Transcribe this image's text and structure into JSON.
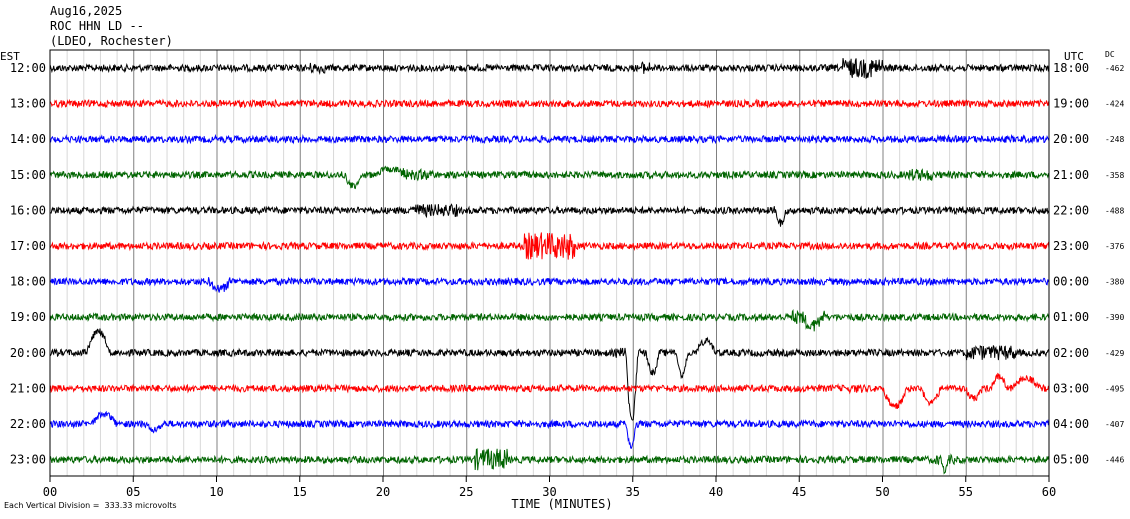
{
  "header": {
    "date": "Aug16,2025",
    "station": "ROC HHN LD --",
    "network": "(LDEO, Rochester)"
  },
  "left_axis_title": "EST",
  "right_axis_title": "UTC",
  "dc_title": "DC",
  "footnote": "Each Vertical Division =  333.33 microvolts",
  "colors": [
    "#000000",
    "#ff0000",
    "#0000ff",
    "#006400"
  ],
  "chart_data": {
    "type": "line",
    "subtype": "helicorder",
    "xlabel": "TIME (MINUTES)",
    "xlim": [
      0,
      60
    ],
    "x_ticks": [
      0,
      5,
      10,
      15,
      20,
      25,
      30,
      35,
      40,
      45,
      50,
      55,
      60
    ],
    "x_tick_labels": [
      "00",
      "05",
      "10",
      "15",
      "20",
      "25",
      "30",
      "35",
      "40",
      "45",
      "50",
      "55",
      "60"
    ],
    "grid": "vertical lines every minute",
    "vertical_division_microvolts": 333.33,
    "rows": [
      {
        "est": "12:00",
        "utc": "18:00",
        "dc": "-462",
        "color": "#000000"
      },
      {
        "est": "13:00",
        "utc": "19:00",
        "dc": "-424",
        "color": "#ff0000"
      },
      {
        "est": "14:00",
        "utc": "20:00",
        "dc": "-248",
        "color": "#0000ff"
      },
      {
        "est": "15:00",
        "utc": "21:00",
        "dc": "-358",
        "color": "#006400"
      },
      {
        "est": "16:00",
        "utc": "22:00",
        "dc": "-488",
        "color": "#000000"
      },
      {
        "est": "17:00",
        "utc": "23:00",
        "dc": "-376",
        "color": "#ff0000"
      },
      {
        "est": "18:00",
        "utc": "00:00",
        "dc": "-380",
        "color": "#0000ff"
      },
      {
        "est": "19:00",
        "utc": "01:00",
        "dc": "-390",
        "color": "#006400"
      },
      {
        "est": "20:00",
        "utc": "02:00",
        "dc": "-429",
        "color": "#000000"
      },
      {
        "est": "21:00",
        "utc": "03:00",
        "dc": "-495",
        "color": "#ff0000"
      },
      {
        "est": "22:00",
        "utc": "04:00",
        "dc": "-407",
        "color": "#0000ff"
      },
      {
        "est": "23:00",
        "utc": "05:00",
        "dc": "-446",
        "color": "#006400"
      }
    ]
  }
}
